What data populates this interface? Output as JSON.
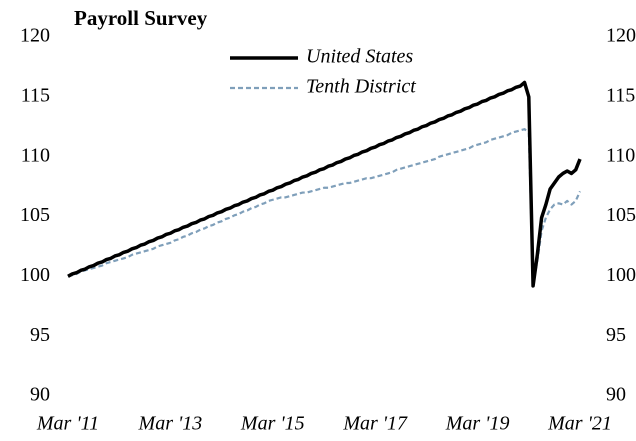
{
  "chart_data": {
    "type": "line",
    "title": "Payroll Survey",
    "categories": [
      "Mar '11",
      null,
      null,
      null,
      null,
      null,
      null,
      null,
      null,
      null,
      null,
      null,
      null,
      null,
      null,
      null,
      null,
      null,
      null,
      null,
      null,
      null,
      null,
      null,
      "Mar '13",
      null,
      null,
      null,
      null,
      null,
      null,
      null,
      null,
      null,
      null,
      null,
      null,
      null,
      null,
      null,
      null,
      null,
      null,
      null,
      null,
      null,
      null,
      null,
      "Mar '15",
      null,
      null,
      null,
      null,
      null,
      null,
      null,
      null,
      null,
      null,
      null,
      null,
      null,
      null,
      null,
      null,
      null,
      null,
      null,
      null,
      null,
      null,
      null,
      "Mar '17",
      null,
      null,
      null,
      null,
      null,
      null,
      null,
      null,
      null,
      null,
      null,
      null,
      null,
      null,
      null,
      null,
      null,
      null,
      null,
      null,
      null,
      null,
      null,
      "Mar '19",
      null,
      null,
      null,
      null,
      null,
      null,
      null,
      null,
      null,
      null,
      null,
      null,
      null,
      null,
      null,
      null,
      null,
      null,
      null,
      null,
      null,
      null,
      null,
      "Mar '21"
    ],
    "series": [
      {
        "name": "United States",
        "color": "#000000",
        "dash": false,
        "values": [
          100.0,
          100.2,
          100.3,
          100.5,
          100.6,
          100.8,
          100.9,
          101.1,
          101.2,
          101.4,
          101.5,
          101.7,
          101.8,
          102.0,
          102.1,
          102.3,
          102.4,
          102.6,
          102.7,
          102.9,
          103.0,
          103.2,
          103.3,
          103.5,
          103.6,
          103.8,
          103.9,
          104.1,
          104.2,
          104.4,
          104.5,
          104.7,
          104.8,
          105.0,
          105.1,
          105.3,
          105.4,
          105.6,
          105.7,
          105.9,
          106.0,
          106.2,
          106.3,
          106.5,
          106.6,
          106.8,
          106.9,
          107.1,
          107.2,
          107.4,
          107.5,
          107.7,
          107.8,
          108.0,
          108.1,
          108.3,
          108.4,
          108.6,
          108.7,
          108.9,
          109.0,
          109.2,
          109.3,
          109.5,
          109.6,
          109.8,
          109.9,
          110.1,
          110.2,
          110.4,
          110.5,
          110.7,
          110.8,
          111.0,
          111.1,
          111.3,
          111.4,
          111.6,
          111.7,
          111.9,
          112.0,
          112.2,
          112.3,
          112.5,
          112.6,
          112.8,
          112.9,
          113.1,
          113.2,
          113.4,
          113.5,
          113.7,
          113.8,
          114.0,
          114.1,
          114.3,
          114.4,
          114.6,
          114.7,
          114.9,
          115.0,
          115.2,
          115.3,
          115.5,
          115.6,
          115.8,
          115.9,
          116.2,
          115.0,
          99.2,
          101.8,
          104.9,
          106.0,
          107.3,
          107.8,
          108.3,
          108.6,
          108.8,
          108.6,
          108.9,
          109.8
        ]
      },
      {
        "name": "Tenth District",
        "color": "#7f9fba",
        "dash": true,
        "values": [
          100.0,
          100.1,
          100.2,
          100.4,
          100.5,
          100.6,
          100.7,
          100.8,
          100.9,
          101.1,
          101.2,
          101.3,
          101.4,
          101.5,
          101.6,
          101.8,
          101.9,
          102.0,
          102.1,
          102.2,
          102.3,
          102.5,
          102.6,
          102.7,
          102.8,
          103.0,
          103.1,
          103.3,
          103.4,
          103.6,
          103.7,
          103.9,
          104.0,
          104.2,
          104.3,
          104.5,
          104.6,
          104.8,
          104.9,
          105.1,
          105.2,
          105.4,
          105.5,
          105.7,
          105.8,
          106.0,
          106.1,
          106.3,
          106.4,
          106.5,
          106.6,
          106.6,
          106.7,
          106.8,
          106.9,
          107.0,
          107.0,
          107.1,
          107.2,
          107.3,
          107.4,
          107.4,
          107.5,
          107.6,
          107.7,
          107.8,
          107.8,
          107.9,
          108.0,
          108.1,
          108.2,
          108.2,
          108.3,
          108.4,
          108.5,
          108.6,
          108.7,
          108.9,
          109.0,
          109.1,
          109.2,
          109.3,
          109.4,
          109.5,
          109.6,
          109.7,
          109.8,
          110.0,
          110.1,
          110.2,
          110.3,
          110.4,
          110.5,
          110.6,
          110.7,
          110.9,
          111.0,
          111.1,
          111.2,
          111.4,
          111.5,
          111.6,
          111.7,
          111.8,
          112.0,
          112.1,
          112.2,
          112.3,
          112.0,
          99.3,
          101.3,
          103.8,
          104.9,
          105.6,
          106.0,
          106.1,
          106.0,
          106.3,
          106.0,
          106.3,
          107.1
        ]
      }
    ],
    "ylim": [
      90,
      120
    ],
    "yticks": [
      90,
      95,
      100,
      105,
      110,
      115,
      120
    ],
    "y2lim": [
      90,
      120
    ],
    "y2ticks": [
      90,
      95,
      100,
      105,
      110,
      115,
      120
    ],
    "grid": false
  }
}
